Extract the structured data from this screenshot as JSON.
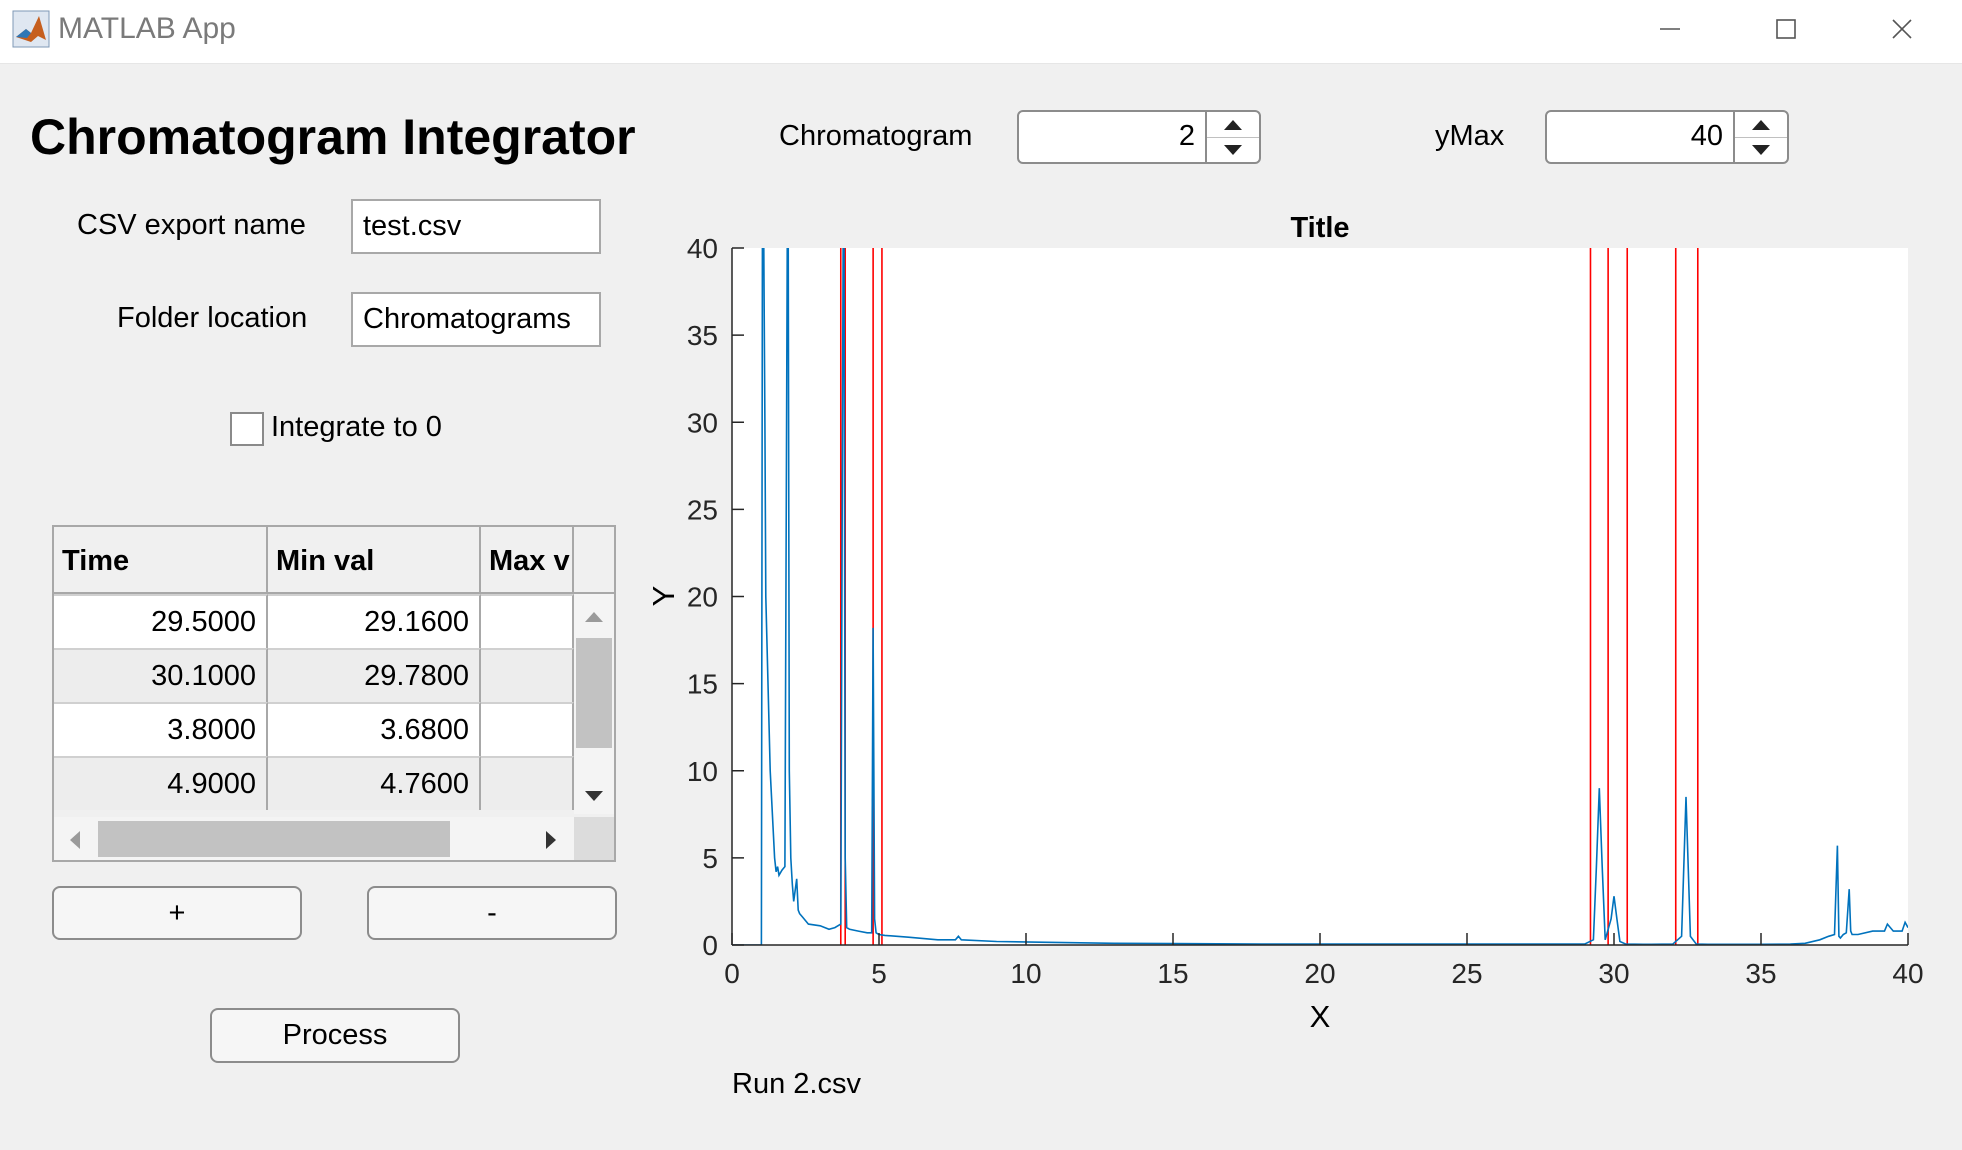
{
  "window": {
    "title": "MATLAB App"
  },
  "app": {
    "heading": "Chromatogram Integrator"
  },
  "csv_export": {
    "label": "CSV export name",
    "value": "test.csv"
  },
  "folder": {
    "label": "Folder location",
    "value": "Chromatograms"
  },
  "integrate": {
    "label": "Integrate to 0",
    "checked": false
  },
  "chromatogram": {
    "label": "Chromatogram",
    "value": "2"
  },
  "ymax": {
    "label": "yMax",
    "value": "40"
  },
  "table": {
    "columns": [
      "Time",
      "Min val",
      "Max v"
    ],
    "rows": [
      [
        "29.5000",
        "29.1600",
        ""
      ],
      [
        "30.1000",
        "29.7800",
        ""
      ],
      [
        "3.8000",
        "3.6800",
        ""
      ],
      [
        "4.9000",
        "4.7600",
        ""
      ]
    ]
  },
  "buttons": {
    "add": "+",
    "remove": "-",
    "process": "Process"
  },
  "status": {
    "filename": "Run 2.csv"
  },
  "chart_data": {
    "type": "line",
    "title": "Title",
    "xlabel": "X",
    "ylabel": "Y",
    "xlim": [
      0,
      40
    ],
    "ylim": [
      0,
      40
    ],
    "xticks": [
      0,
      5,
      10,
      15,
      20,
      25,
      30,
      35,
      40
    ],
    "yticks": [
      0,
      5,
      10,
      15,
      20,
      25,
      30,
      35,
      40
    ],
    "grid": false,
    "line_color": "#0072bd",
    "marker_color": "#ff0000",
    "series": [
      {
        "x": [
          0,
          1.0,
          1.05,
          1.08,
          1.12,
          1.15,
          1.3,
          1.45,
          1.5,
          1.55,
          1.6,
          1.7,
          1.8,
          1.9,
          1.95,
          2.0,
          2.05,
          2.1,
          2.2,
          2.25,
          2.3,
          2.4,
          2.6,
          3.0,
          3.3,
          3.5,
          3.7,
          3.8,
          3.85,
          3.9,
          4.0,
          4.3,
          4.6,
          4.75,
          4.8,
          4.85,
          4.9,
          4.95,
          5.0,
          5.2,
          6.0,
          7.0,
          7.6,
          7.7,
          7.8,
          9.0,
          11.0,
          13.0,
          15.0,
          18.0,
          22.0,
          25.0,
          28.0,
          29.0,
          29.3,
          29.4,
          29.5,
          29.6,
          29.7,
          29.9,
          30.0,
          30.1,
          30.2,
          30.4,
          31.0,
          32.0,
          32.3,
          32.45,
          32.6,
          32.8,
          33.2,
          35.0,
          36.0,
          36.5,
          37.0,
          37.3,
          37.5,
          37.6,
          37.65,
          37.7,
          37.8,
          37.9,
          38.0,
          38.05,
          38.1,
          38.3,
          38.8,
          39.0,
          39.2,
          39.3,
          39.5,
          39.8,
          39.9,
          40.0
        ],
        "y": [
          0,
          0,
          60,
          40,
          30,
          20,
          10,
          5.0,
          4.2,
          4.5,
          4.0,
          4.3,
          4.5,
          50,
          10,
          5.0,
          3.5,
          2.5,
          3.8,
          2.0,
          1.8,
          1.6,
          1.2,
          1.1,
          0.9,
          1.0,
          1.2,
          50,
          5.0,
          1.0,
          0.9,
          0.8,
          0.7,
          0.7,
          18.2,
          1.5,
          0.7,
          0.65,
          0.6,
          0.55,
          0.45,
          0.3,
          0.3,
          0.5,
          0.3,
          0.2,
          0.15,
          0.1,
          0.08,
          0.06,
          0.05,
          0.05,
          0.05,
          0.05,
          0.3,
          4.5,
          9.0,
          4.5,
          0.3,
          1.5,
          2.8,
          1.5,
          0.2,
          0.05,
          0.04,
          0.05,
          0.5,
          8.5,
          0.5,
          0.05,
          0.04,
          0.04,
          0.05,
          0.1,
          0.3,
          0.5,
          0.6,
          5.7,
          0.5,
          0.4,
          0.6,
          0.7,
          3.2,
          0.8,
          0.6,
          0.6,
          0.8,
          0.8,
          0.8,
          1.2,
          0.8,
          0.8,
          1.3,
          1.0
        ]
      }
    ],
    "marker_lines_x": [
      3.7,
      3.85,
      4.8,
      5.1,
      29.2,
      29.8,
      30.45,
      32.1,
      32.85
    ]
  }
}
